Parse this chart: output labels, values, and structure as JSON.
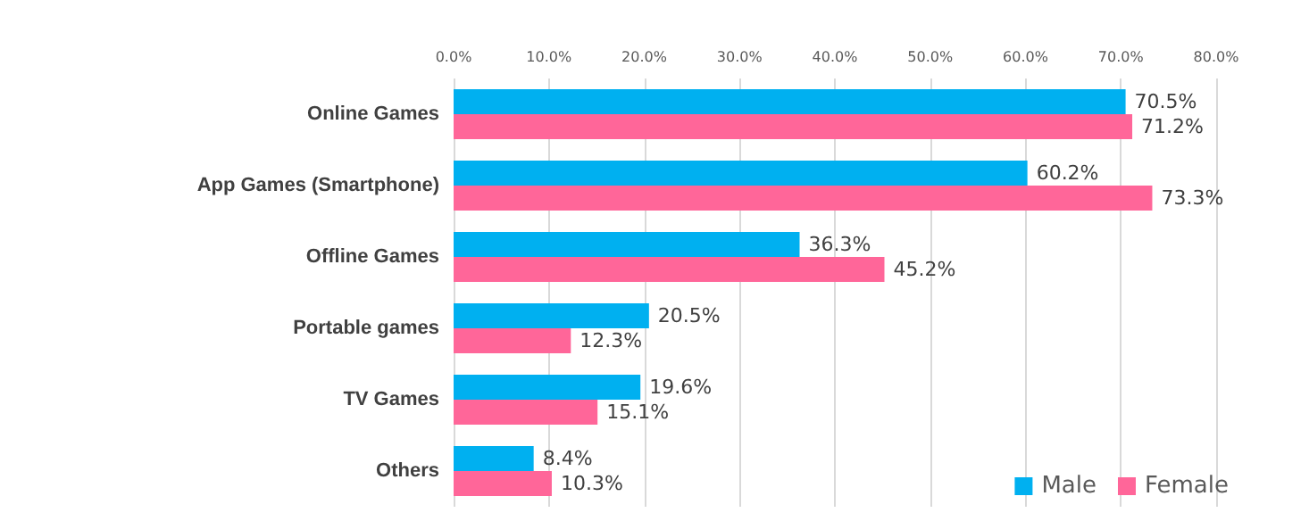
{
  "chart_data": {
    "type": "bar",
    "orientation": "horizontal",
    "categories": [
      "Online Games",
      "App Games (Smartphone)",
      "Offline Games",
      "Portable games",
      "TV Games",
      "Others"
    ],
    "series": [
      {
        "name": "Male",
        "color": "#00b0f0",
        "values": [
          70.5,
          60.2,
          36.3,
          20.5,
          19.6,
          8.4
        ],
        "value_labels": [
          "70.5%",
          "60.2%",
          "36.3%",
          "20.5%",
          "19.6%",
          "8.4%"
        ]
      },
      {
        "name": "Female",
        "color": "#ff6699",
        "values": [
          71.2,
          73.3,
          45.2,
          12.3,
          15.1,
          10.3
        ],
        "value_labels": [
          "71.2%",
          "73.3%",
          "45.2%",
          "12.3%",
          "15.1%",
          "10.3%"
        ]
      }
    ],
    "xlim": [
      0,
      80
    ],
    "xticks": [
      {
        "value": 0,
        "label": "0.0%"
      },
      {
        "value": 10,
        "label": "10.0%"
      },
      {
        "value": 20,
        "label": "20.0%"
      },
      {
        "value": 30,
        "label": "30.0%"
      },
      {
        "value": 40,
        "label": "40.0%"
      },
      {
        "value": 50,
        "label": "50.0%"
      },
      {
        "value": 60,
        "label": "60.0%"
      },
      {
        "value": 70,
        "label": "70.0%"
      },
      {
        "value": 80,
        "label": "80.0%"
      }
    ],
    "grid": "x",
    "legend": "bottom right"
  }
}
